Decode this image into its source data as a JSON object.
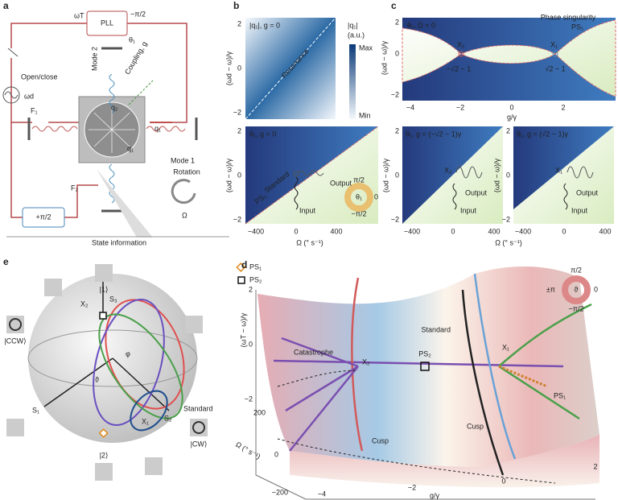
{
  "panels": {
    "a": {
      "label": "a",
      "pll": "PLL",
      "omega_t": "ωT",
      "phase_shift": "−π/2",
      "theta": "θ₁",
      "switch": "Open/close",
      "drive": "ωd",
      "force_1": "F₁",
      "force_2": "F₂",
      "mode_2": "Mode 2",
      "coupling": "Coupling, g",
      "q2": "q₂",
      "q1_out": "q₁",
      "q1": "q₁",
      "mode_1": "Mode 1",
      "plus_shift": "+π/2",
      "rotation": "Rotation",
      "omega": "Ω",
      "state_info": "State information"
    },
    "b": {
      "label": "b",
      "top_title": "|q₁|, g = 0",
      "resonance": "Resonance",
      "cbar_title_1": "|q₁|",
      "cbar_title_2": "(a.u.)",
      "max": "Max",
      "min": "Min",
      "y_label": "(ωd − ω)/γ",
      "top_yticks": [
        "2",
        "0",
        "−2"
      ],
      "bottom_title": "θ₁, g = 0",
      "standard": "Standard",
      "ps": "PS₂",
      "output": "Output",
      "input": "Input",
      "bottom_yticks": [
        "2",
        "0",
        "−2"
      ],
      "xticks": [
        "−400",
        "0",
        "400"
      ],
      "x_label": "Ω (° s⁻¹)",
      "cbar_top": "π/2",
      "cbar_right": "0",
      "cbar_bottom": "−π/2",
      "cbar_center": "θ₁"
    },
    "c": {
      "label": "c",
      "top_title": "θ₁, Ω = 0",
      "phase_singularity": "Phase singularity",
      "ps1": "PS₁",
      "x2": "X₂",
      "x1": "X₁",
      "left_point": "−√2 − 1",
      "right_point": "√2 − 1",
      "y_label": "(ωd − ω)/γ",
      "top_yticks": [
        "2",
        "0",
        "−2"
      ],
      "top_xticks": [
        "−4",
        "−2",
        "0",
        "2"
      ],
      "top_x_label": "g/γ",
      "bl_title": "θ₁, g = (−√2 − 1)γ",
      "br_title": "θ₁, g = (√2 − 1)γ",
      "bl_x2": "X₂",
      "br_x1": "X₁",
      "bl_output": "Output",
      "bl_input": "Input",
      "br_output": "Output",
      "br_input": "Input",
      "bottom_y_label": "(ωd − ω)/γ",
      "bl_yticks": [
        "2",
        "0",
        "−2"
      ],
      "br_yticks": [
        "2",
        "0",
        "−2"
      ],
      "bl_xticks": [
        "−400",
        "0",
        "400"
      ],
      "br_xticks": [
        "−400",
        "0",
        "400"
      ],
      "bottom_x_label": "Ω (° s⁻¹)"
    },
    "e": {
      "label": "e",
      "legend_ps1": "PS₁",
      "legend_ps2": "PS₂",
      "ket1": "|1⟩",
      "ket2": "|2⟩",
      "ccw": "|CCW⟩",
      "cw": "|CW⟩",
      "s1": "S₁",
      "s2": "S₂",
      "s3": "S₃",
      "x1": "X₁",
      "x2": "X₂",
      "phi": "φ",
      "theta": "ϑ",
      "standard": "Standard"
    },
    "d": {
      "label": "d",
      "cbar_top": "π/2",
      "cbar_left": "±π",
      "cbar_right": "0",
      "cbar_bottom": "−π/2",
      "cbar_center": "ϑ",
      "standard": "Standard",
      "catastrophe": "Catastrophe",
      "x2": "X₂",
      "x1": "X₁",
      "ps2": "PS₂",
      "ps1": "PS₁",
      "cusp_left": "Cusp",
      "cusp_right": "Cusp",
      "z_label": "(ωT − ω)/γ",
      "zticks": [
        "2",
        "0",
        "−2"
      ],
      "y_label": "Ω (° s⁻¹)",
      "yticks": [
        "200",
        "0",
        "−200"
      ],
      "x_label": "g/γ",
      "xticks": [
        "−4",
        "−2",
        "0",
        "2"
      ]
    }
  }
}
